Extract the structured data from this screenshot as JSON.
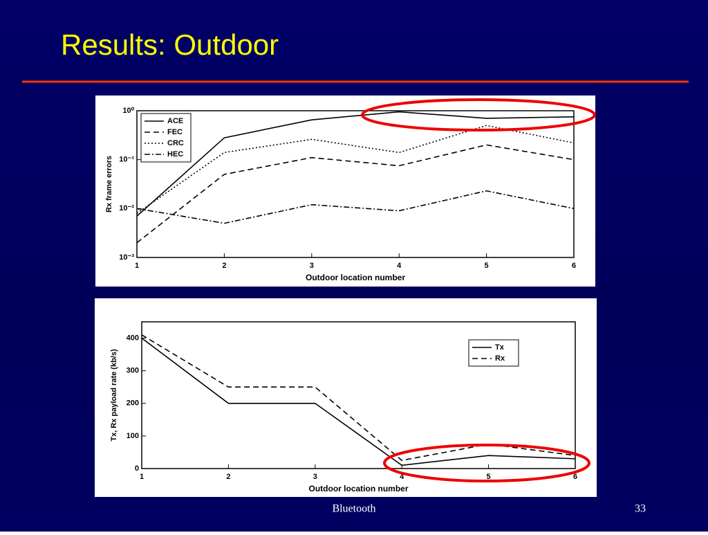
{
  "slide": {
    "title": "Results: Outdoor",
    "footer": "Bluetooth",
    "page": "33"
  },
  "chart_data": [
    {
      "type": "line",
      "yscale": "log",
      "legend": "upper left",
      "x_label": "Outdoor location number",
      "y_label": "Rx frame errors",
      "x": [
        1,
        2,
        3,
        4,
        5,
        6
      ],
      "xlim": [
        1,
        6
      ],
      "xticks": [
        1,
        2,
        3,
        4,
        5,
        6
      ],
      "ylim": [
        0.001,
        1
      ],
      "yticks": [
        {
          "value": 0.001,
          "label": "10⁻³"
        },
        {
          "value": 0.01,
          "label": "10⁻²"
        },
        {
          "value": 0.1,
          "label": "10⁻¹"
        },
        {
          "value": 1,
          "label": "10⁰"
        }
      ],
      "series": [
        {
          "name": "ACE",
          "color": "#000000",
          "dash": "solid",
          "values": [
            0.007,
            0.28,
            0.65,
            0.95,
            0.7,
            0.75
          ]
        },
        {
          "name": "FEC",
          "color": "#000000",
          "dash": "dashed",
          "values": [
            0.002,
            0.05,
            0.11,
            0.075,
            0.2,
            0.1
          ]
        },
        {
          "name": "CRC",
          "color": "#000000",
          "dash": "dotted",
          "values": [
            0.008,
            0.14,
            0.26,
            0.14,
            0.5,
            0.22
          ]
        },
        {
          "name": "HEC",
          "color": "#000000",
          "dash": "dashdot",
          "values": [
            0.01,
            0.005,
            0.012,
            0.009,
            0.023,
            0.01
          ]
        }
      ]
    },
    {
      "type": "line",
      "legend": "upper right",
      "x_label": "Outdoor location number",
      "y_label": "Tx, Rx payload rate (kb/s)",
      "x": [
        1,
        2,
        3,
        4,
        5,
        6
      ],
      "xlim": [
        1,
        6
      ],
      "xticks": [
        1,
        2,
        3,
        4,
        5,
        6
      ],
      "ylim": [
        0,
        450
      ],
      "yticks": [
        0,
        100,
        200,
        300,
        400
      ],
      "series": [
        {
          "name": "Tx",
          "color": "#000000",
          "dash": "solid",
          "values": [
            400,
            200,
            200,
            10,
            40,
            30
          ]
        },
        {
          "name": "Rx",
          "color": "#000000",
          "dash": "dashed",
          "values": [
            410,
            250,
            250,
            25,
            75,
            40
          ]
        }
      ]
    }
  ]
}
